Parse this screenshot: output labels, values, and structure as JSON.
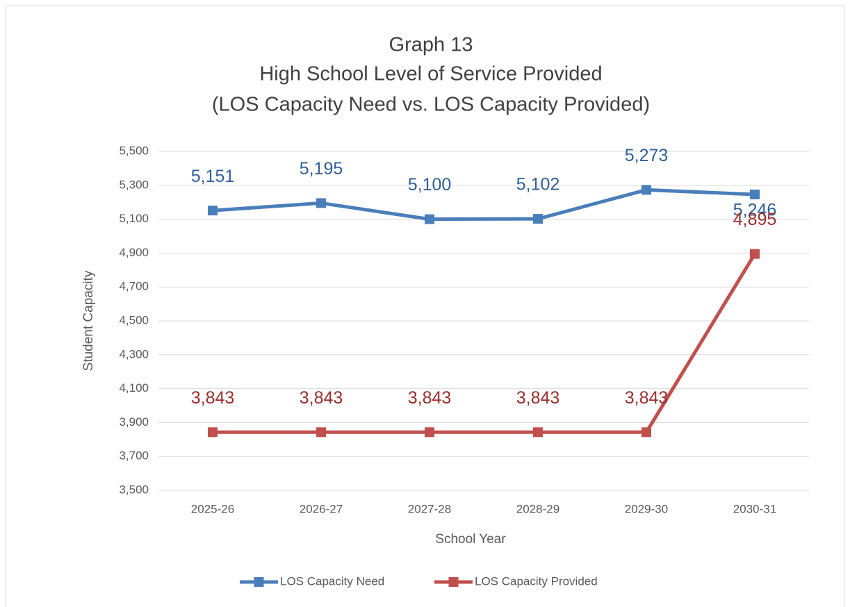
{
  "chart_data": {
    "type": "line",
    "title": [
      "Graph 13",
      "High School Level of Service Provided",
      "(LOS Capacity Need vs. LOS Capacity Provided)"
    ],
    "x_label": "School Year",
    "y_label": "Student Capacity",
    "categories": [
      "2025-26",
      "2026-27",
      "2027-28",
      "2028-29",
      "2029-30",
      "2030-31"
    ],
    "series": [
      {
        "name": "LOS Capacity Need",
        "color": "#4a7ebb",
        "label_color": "#2e5f9a",
        "values": [
          5151,
          5195,
          5100,
          5102,
          5273,
          5246
        ],
        "value_labels": [
          "5,151",
          "5,195",
          "5,100",
          "5,102",
          "5,273",
          "5,246"
        ]
      },
      {
        "name": "LOS Capacity Provided",
        "color": "#c0504d",
        "label_color": "#9c2f2c",
        "values": [
          3843,
          3843,
          3843,
          3843,
          3843,
          4895
        ],
        "value_labels": [
          "3,843",
          "3,843",
          "3,843",
          "3,843",
          "3,843",
          "4,895"
        ]
      }
    ],
    "ylim": [
      3500,
      5500
    ],
    "yticks": [
      {
        "value": 3500,
        "label": "3,500"
      },
      {
        "value": 3700,
        "label": "3,700"
      },
      {
        "value": 3900,
        "label": "3,900"
      },
      {
        "value": 4100,
        "label": "4,100"
      },
      {
        "value": 4300,
        "label": "4,300"
      },
      {
        "value": 4500,
        "label": "4,500"
      },
      {
        "value": 4700,
        "label": "4,700"
      },
      {
        "value": 4900,
        "label": "4,900"
      },
      {
        "value": 5100,
        "label": "5,100"
      },
      {
        "value": 5300,
        "label": "5,300"
      },
      {
        "value": 5500,
        "label": "5,500"
      }
    ],
    "grid": true,
    "legend": "bottom"
  }
}
